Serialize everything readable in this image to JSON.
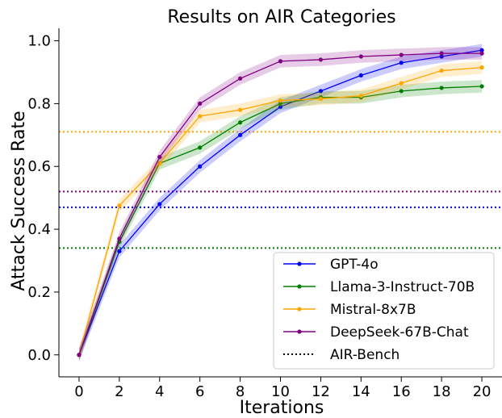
{
  "chart_data": {
    "type": "line",
    "title": "Results on AIR Categories",
    "xlabel": "Iterations",
    "ylabel": "Attack Success Rate",
    "xlim": [
      -1,
      21
    ],
    "ylim": [
      -0.07,
      1.04
    ],
    "xticks": [
      0,
      2,
      4,
      6,
      8,
      10,
      12,
      14,
      16,
      18,
      20
    ],
    "yticks": [
      0.0,
      0.2,
      0.4,
      0.6,
      0.8,
      1.0
    ],
    "ytick_labels": [
      "0.0",
      "0.2",
      "0.4",
      "0.6",
      "0.8",
      "1.0"
    ],
    "grid": false,
    "legend_position": "lower-right",
    "x": [
      0,
      2,
      4,
      6,
      8,
      10,
      12,
      14,
      16,
      18,
      20
    ],
    "series": [
      {
        "name": "GPT-4o",
        "color": "#0000ff",
        "values": [
          0.0,
          0.33,
          0.48,
          0.6,
          0.7,
          0.79,
          0.84,
          0.89,
          0.93,
          0.95,
          0.97
        ],
        "band": 0.02
      },
      {
        "name": "Llama-3-Instruct-70B",
        "color": "#008000",
        "values": [
          0.0,
          0.36,
          0.61,
          0.66,
          0.74,
          0.8,
          0.82,
          0.82,
          0.84,
          0.85,
          0.855
        ],
        "band": 0.02
      },
      {
        "name": "Mistral-8x7B",
        "color": "#ffa500",
        "values": [
          0.0,
          0.475,
          0.61,
          0.76,
          0.78,
          0.81,
          0.815,
          0.825,
          0.865,
          0.905,
          0.915
        ],
        "band": 0.02
      },
      {
        "name": "DeepSeek-67B-Chat",
        "color": "#800080",
        "values": [
          0.0,
          0.37,
          0.63,
          0.8,
          0.88,
          0.935,
          0.94,
          0.95,
          0.955,
          0.96,
          0.96
        ],
        "band": 0.02
      }
    ],
    "baselines": [
      {
        "series": "Mistral-8x7B",
        "color": "#ffa500",
        "value": 0.71
      },
      {
        "series": "DeepSeek-67B-Chat",
        "color": "#800080",
        "value": 0.52
      },
      {
        "series": "GPT-4o",
        "color": "#0000ff",
        "value": 0.47
      },
      {
        "series": "Llama-3-Instruct-70B",
        "color": "#008000",
        "value": 0.34
      }
    ],
    "baseline_legend_label": "AIR-Bench"
  }
}
